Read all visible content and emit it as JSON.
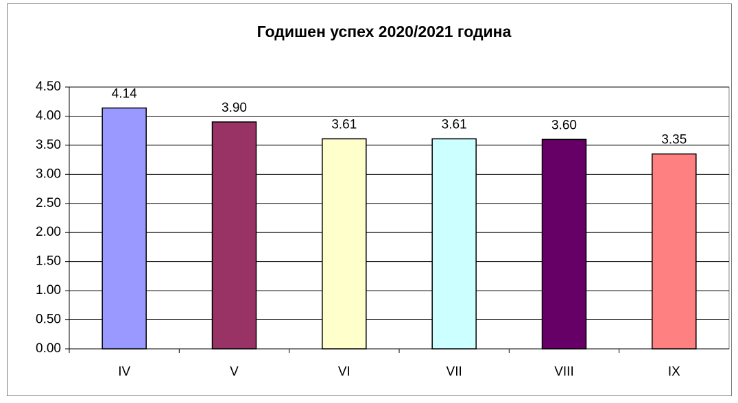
{
  "chart_data": {
    "type": "bar",
    "title": "Годишен успех 2020/2021 година",
    "categories": [
      "IV",
      "V",
      "VI",
      "VII",
      "VIII",
      "IX"
    ],
    "values": [
      4.14,
      3.9,
      3.61,
      3.61,
      3.6,
      3.35
    ],
    "value_labels": [
      "4.14",
      "3.90",
      "3.61",
      "3.61",
      "3.60",
      "3.35"
    ],
    "colors": [
      "#9999ff",
      "#993366",
      "#ffffcc",
      "#ccffff",
      "#660066",
      "#ff8080"
    ],
    "ylim": [
      0,
      4.5
    ],
    "yticks": [
      {
        "value": 0,
        "label": "0.00"
      },
      {
        "value": 0.5,
        "label": "0.50"
      },
      {
        "value": 1,
        "label": "1.00"
      },
      {
        "value": 1.5,
        "label": "1.50"
      },
      {
        "value": 2,
        "label": "2.00"
      },
      {
        "value": 2.5,
        "label": "2.50"
      },
      {
        "value": 3,
        "label": "3.00"
      },
      {
        "value": 3.5,
        "label": "3.50"
      },
      {
        "value": 4,
        "label": "4.00"
      },
      {
        "value": 4.5,
        "label": "4.50"
      }
    ],
    "grid": true
  }
}
